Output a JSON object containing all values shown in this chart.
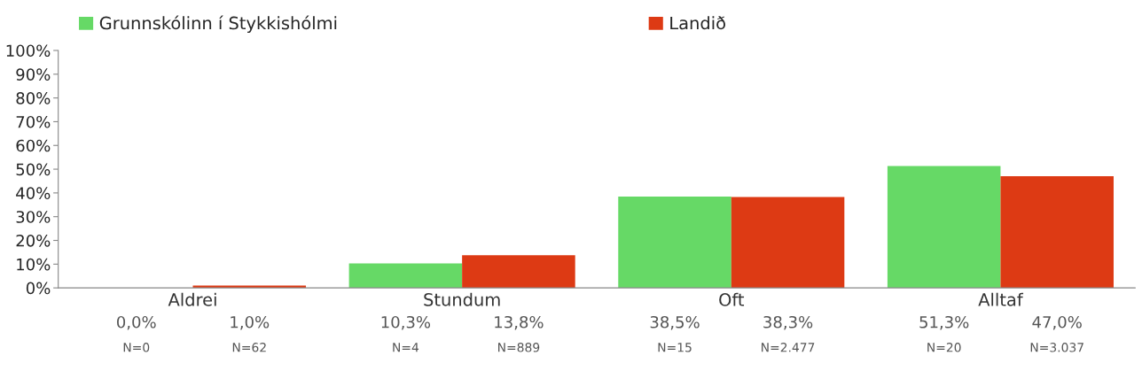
{
  "chart_data": {
    "type": "bar",
    "categories": [
      "Aldrei",
      "Stundum",
      "Oft",
      "Alltaf"
    ],
    "series": [
      {
        "name": "Grunnskólinn í Stykkishólmi",
        "color": "#66d966",
        "values": [
          0.0,
          10.3,
          38.5,
          51.3
        ],
        "value_labels": [
          "0,0%",
          "10,3%",
          "38,5%",
          "51,3%"
        ]
      },
      {
        "name": "Landið",
        "color": "#dd3a14",
        "values": [
          1.0,
          13.8,
          38.3,
          47.0
        ],
        "value_labels": [
          "1,0%",
          "13,8%",
          "38,3%",
          "47,0%"
        ]
      }
    ],
    "annotations": [
      "N=0",
      "N=62",
      "N=4",
      "N=889",
      "N=15",
      "N=2.477",
      "N=20",
      "N=3.037"
    ],
    "ylim": [
      0,
      100
    ],
    "yticks": [
      {
        "value": 0,
        "label": "0%"
      },
      {
        "value": 10,
        "label": "10%"
      },
      {
        "value": 20,
        "label": "20%"
      },
      {
        "value": 30,
        "label": "30%"
      },
      {
        "value": 40,
        "label": "40%"
      },
      {
        "value": 50,
        "label": "50%"
      },
      {
        "value": 60,
        "label": "60%"
      },
      {
        "value": 70,
        "label": "70%"
      },
      {
        "value": 80,
        "label": "80%"
      },
      {
        "value": 90,
        "label": "90%"
      },
      {
        "value": 100,
        "label": "100%"
      }
    ],
    "grid": false,
    "legend": "top"
  }
}
